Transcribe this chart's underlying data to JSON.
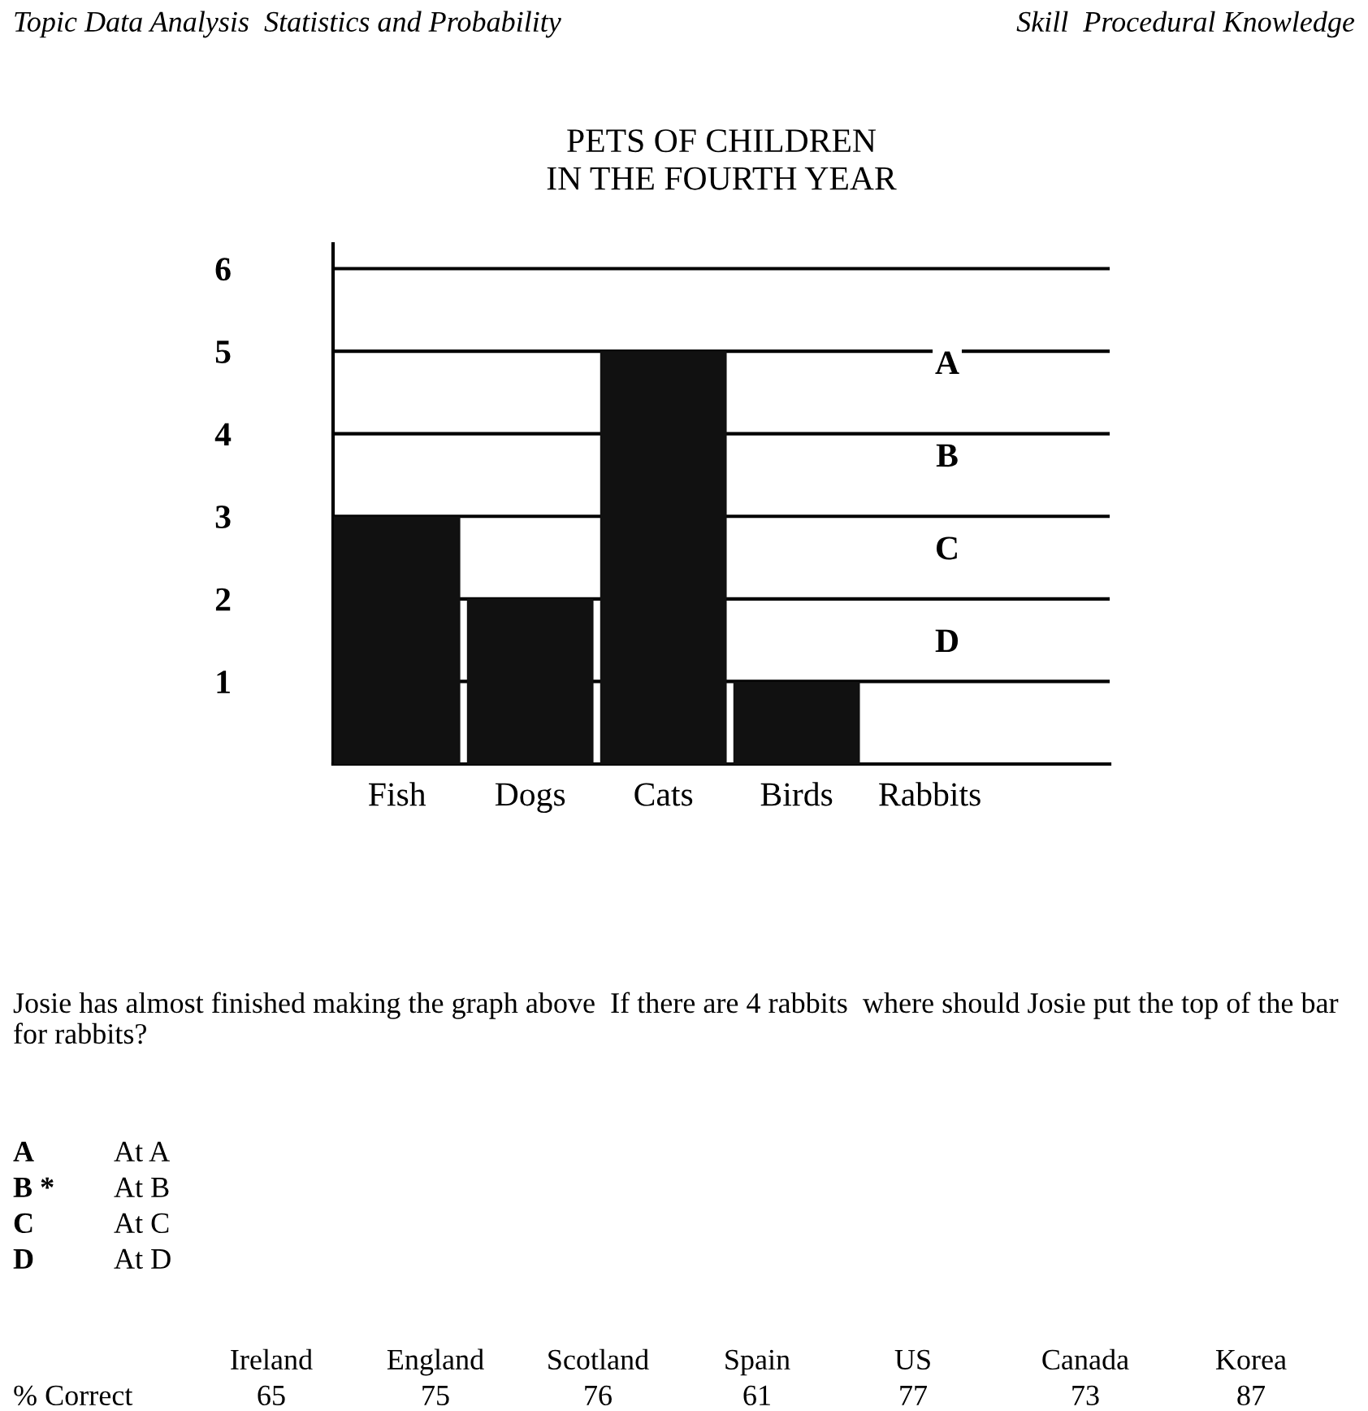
{
  "chart_data": {
    "type": "bar",
    "title": "PETS OF CHILDREN\nIN THE FOURTH YEAR",
    "categories": [
      "Fish",
      "Dogs",
      "Cats",
      "Birds",
      "Rabbits"
    ],
    "values": [
      3,
      2,
      5,
      1,
      null
    ],
    "color": "#111111",
    "ylim": [
      0,
      6.3
    ],
    "yticks": [
      1,
      2,
      3,
      4,
      5,
      6
    ],
    "grid": "y",
    "annotations": [
      "A",
      "B",
      "C",
      "D",
      "Topic Data Analysis  Statistics and Probability",
      "Skill  Procedural Knowledge",
      "Josie has almost finished making the graph above  If there are 4 rabbits  where should Josie put the top of the bar for rabbits?",
      "A",
      "At A",
      "B *",
      "At B",
      "C",
      "At C",
      "D",
      "At D",
      "Ireland",
      "England",
      "Scotland",
      "Spain",
      "US",
      "Canada",
      "Korea",
      "% Correct",
      "65",
      "75",
      "76",
      "61",
      "77",
      "73",
      "87"
    ]
  }
}
